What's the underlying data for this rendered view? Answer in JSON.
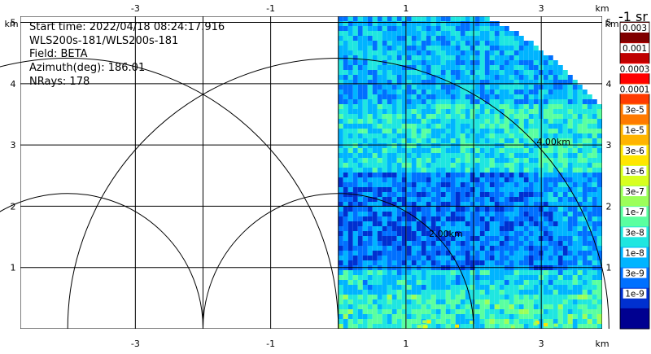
{
  "info": {
    "start_time": "Start time: 2022/04/18 08:24:17.916",
    "instrument": "WLS200s-181/WLS200s-181",
    "field": "Field: BETA",
    "azimuth": "Azimuth(deg): 186.01",
    "nrays": "NRays: 178"
  },
  "colorbar_title": "-1 sr",
  "chart_data": {
    "type": "heatmap",
    "unit_label": "km",
    "x_ticks": [
      "-3",
      "-1",
      "1",
      "3"
    ],
    "y_ticks": [
      "1",
      "2",
      "3",
      "4",
      "5"
    ],
    "xlim": [
      -4.7,
      3.9
    ],
    "ylim": [
      0,
      5.1
    ],
    "grid": true,
    "range_rings": [
      {
        "radius": 2,
        "label": "2.00km"
      },
      {
        "radius": 4,
        "label": "4.00km"
      }
    ],
    "max_range_km": 5.1,
    "sector_deg": [
      0,
      90
    ],
    "colorbar": {
      "labels": [
        "0.003",
        "0.001",
        "0.0003",
        "0.0001",
        "3e-5",
        "1e-5",
        "3e-6",
        "1e-6",
        "3e-7",
        "1e-7",
        "3e-8",
        "1e-8",
        "3e-9",
        "1e-9"
      ],
      "colors": [
        "#800000",
        "#c00000",
        "#ff0000",
        "#ff3a00",
        "#ff7a00",
        "#ffb400",
        "#ffe600",
        "#d8ff1f",
        "#9cff5a",
        "#5affa0",
        "#1fe6e0",
        "#00b4ff",
        "#0070ff",
        "#0030d0",
        "#000090"
      ]
    }
  }
}
